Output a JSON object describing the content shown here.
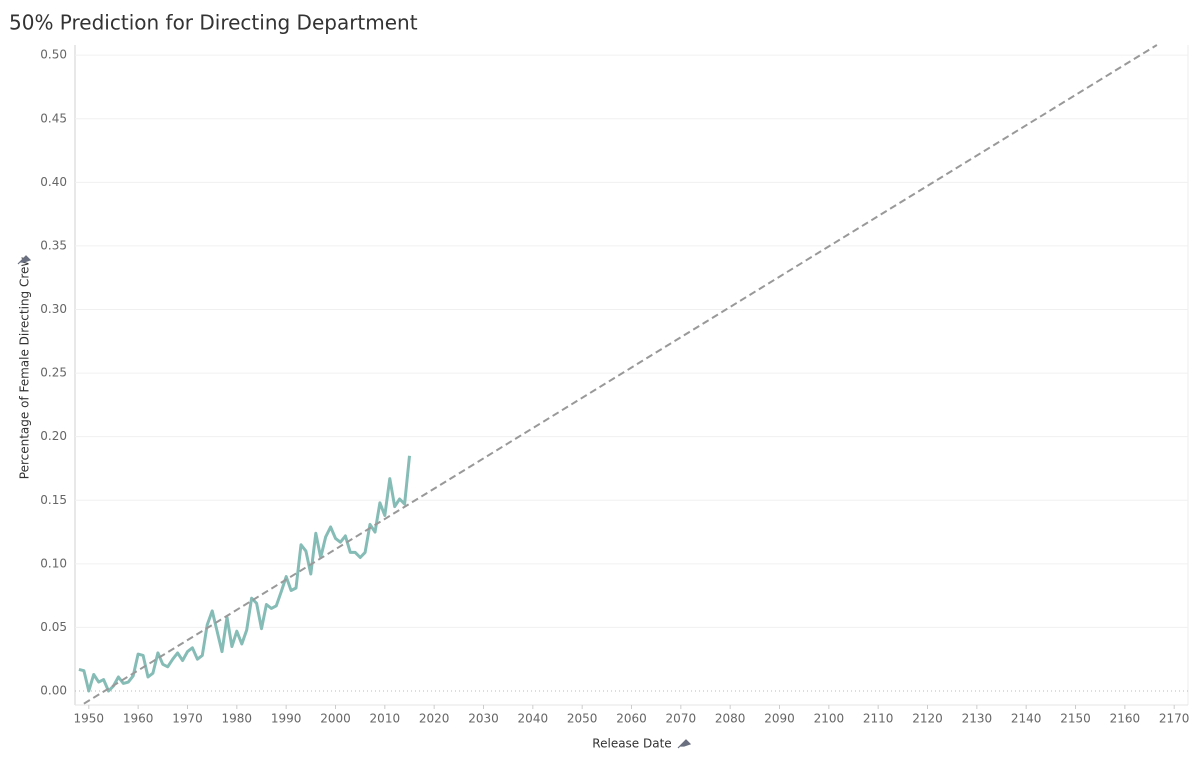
{
  "chart_data": {
    "type": "line",
    "title": "50% Prediction for Directing Department",
    "x_label": "Release Date",
    "y_label": "Percentage of Female Directing Crew",
    "xlim": [
      1947.2,
      2172.8
    ],
    "ylim": [
      -0.011,
      0.508
    ],
    "xticks": [
      1950,
      1960,
      1970,
      1980,
      1990,
      2000,
      2010,
      2020,
      2030,
      2040,
      2050,
      2060,
      2070,
      2080,
      2090,
      2100,
      2110,
      2120,
      2130,
      2140,
      2150,
      2160,
      2170
    ],
    "yticks": [
      {
        "value": 0,
        "label": "0.00"
      },
      {
        "value": 0.05,
        "label": "0.05"
      },
      {
        "value": 0.1,
        "label": "0.10"
      },
      {
        "value": 0.15,
        "label": "0.15"
      },
      {
        "value": 0.2,
        "label": "0.20"
      },
      {
        "value": 0.25,
        "label": "0.25"
      },
      {
        "value": 0.3,
        "label": "0.30"
      },
      {
        "value": 0.35,
        "label": "0.35"
      },
      {
        "value": 0.4,
        "label": "0.40"
      },
      {
        "value": 0.45,
        "label": "0.45"
      },
      {
        "value": 0.5,
        "label": "0.50"
      }
    ],
    "grid": true,
    "series": [
      {
        "color": "#86bcb6",
        "style": "solid",
        "x": [
          1948,
          1949,
          1950,
          1951,
          1952,
          1953,
          1954,
          1955,
          1956,
          1957,
          1958,
          1959,
          1960,
          1961,
          1962,
          1963,
          1964,
          1965,
          1966,
          1967,
          1968,
          1969,
          1970,
          1971,
          1972,
          1973,
          1974,
          1975,
          1976,
          1977,
          1978,
          1979,
          1980,
          1981,
          1982,
          1983,
          1984,
          1985,
          1986,
          1987,
          1988,
          1989,
          1990,
          1991,
          1992,
          1993,
          1994,
          1995,
          1996,
          1997,
          1998,
          1999,
          2000,
          2001,
          2002,
          2003,
          2004,
          2005,
          2006,
          2007,
          2008,
          2009,
          2010,
          2011,
          2012,
          2013,
          2014,
          2015
        ],
        "values": [
          0.017,
          0.016,
          0.0,
          0.013,
          0.007,
          0.009,
          0.0,
          0.004,
          0.011,
          0.006,
          0.007,
          0.012,
          0.029,
          0.028,
          0.011,
          0.014,
          0.03,
          0.021,
          0.019,
          0.025,
          0.03,
          0.024,
          0.031,
          0.034,
          0.025,
          0.028,
          0.052,
          0.063,
          0.047,
          0.031,
          0.058,
          0.035,
          0.047,
          0.037,
          0.048,
          0.073,
          0.069,
          0.049,
          0.068,
          0.065,
          0.067,
          0.078,
          0.09,
          0.079,
          0.081,
          0.115,
          0.11,
          0.092,
          0.124,
          0.105,
          0.121,
          0.129,
          0.12,
          0.117,
          0.122,
          0.109,
          0.109,
          0.105,
          0.109,
          0.131,
          0.125,
          0.148,
          0.138,
          0.167,
          0.145,
          0.151,
          0.147,
          0.185
        ]
      },
      {
        "color": "#999999",
        "style": "dashed",
        "x": [
          1949,
          2166.5
        ],
        "values": [
          -0.01,
          0.508
        ]
      }
    ]
  }
}
